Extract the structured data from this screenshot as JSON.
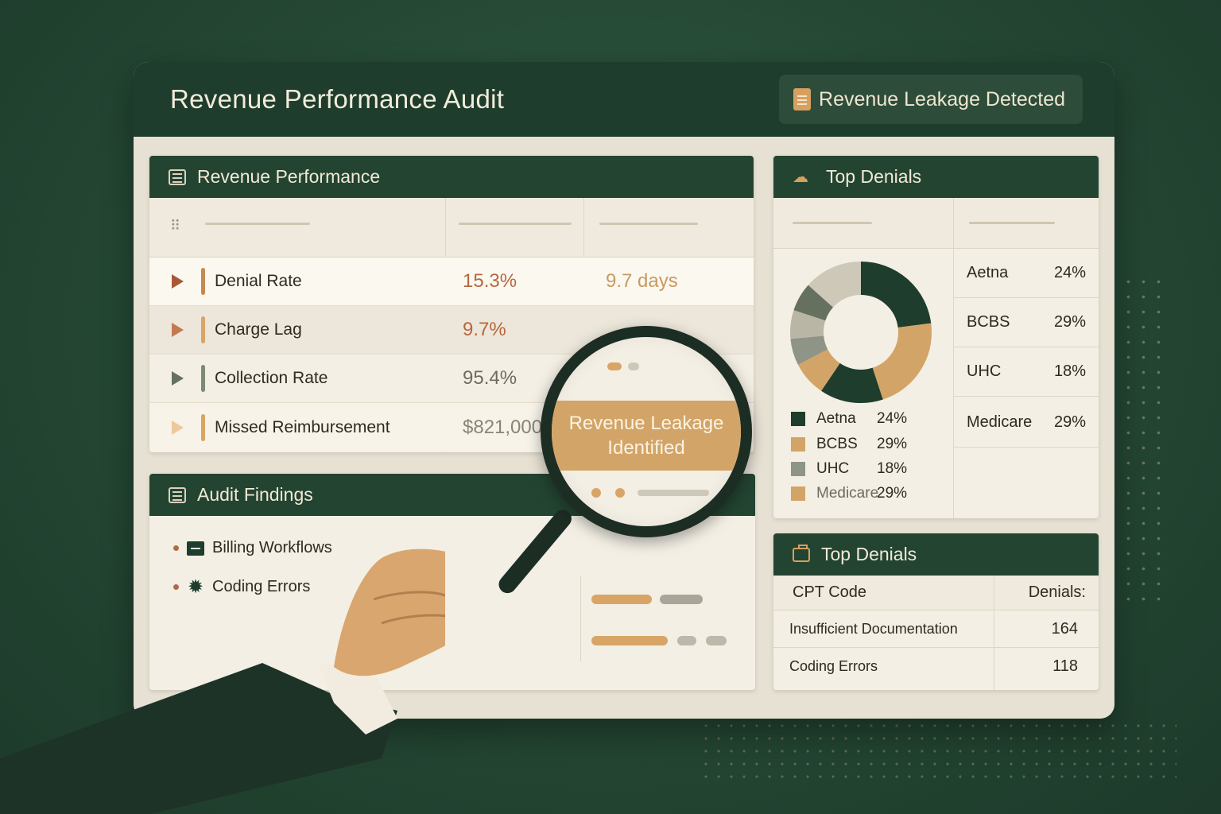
{
  "header": {
    "title": "Revenue Performance Audit",
    "badge": "Revenue Leakage Detected"
  },
  "revenue_panel": {
    "title": "Revenue Performance",
    "rows": [
      {
        "name": "Denial Rate",
        "v1": "15.3%",
        "v2": "9.7 days"
      },
      {
        "name": "Charge Lag",
        "v1": "9.7%",
        "v2": ""
      },
      {
        "name": "Collection Rate",
        "v1": "95.4%",
        "v2": ""
      },
      {
        "name": "Missed Reimbursement",
        "v1": "$821,000",
        "v2": ""
      }
    ]
  },
  "audit_panel": {
    "title": "Audit Findings",
    "items": [
      "Billing Workflows",
      "Coding Errors"
    ]
  },
  "magnifier": {
    "line1": "Revenue Leakage",
    "line2": "Identified"
  },
  "denials_panel": {
    "title": "Top Denials",
    "legend": [
      {
        "name": "Aetna",
        "pct": "24%"
      },
      {
        "name": "BCBS",
        "pct": "29%"
      },
      {
        "name": "UHC",
        "pct": "18%"
      },
      {
        "name": "Medicare",
        "pct": "29%"
      }
    ],
    "side": [
      {
        "name": "Aetna",
        "pct": "24%"
      },
      {
        "name": "BCBS",
        "pct": "29%"
      },
      {
        "name": "UHC",
        "pct": "18%"
      },
      {
        "name": "Medicare",
        "pct": "29%"
      }
    ]
  },
  "table_panel": {
    "title": "Top Denials",
    "col1": "CPT Code",
    "col2": "Denials:",
    "rows": [
      {
        "code": "Insufficient Documentation",
        "count": "164"
      },
      {
        "code": "Coding Errors",
        "count": "118"
      }
    ]
  },
  "colors": {
    "dark_green": "#1f3d2c",
    "gold": "#d3a467",
    "rust": "#a8583a",
    "gray": "#8e9486"
  }
}
